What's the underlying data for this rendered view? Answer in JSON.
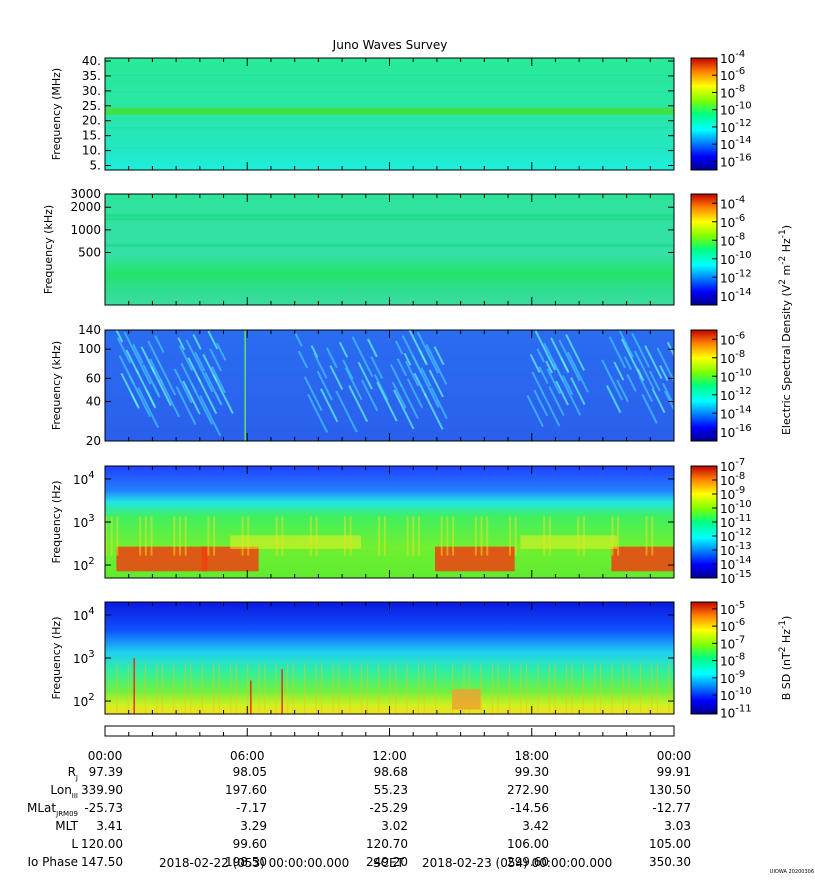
{
  "chart_data": {
    "type": "heatmap",
    "title": "Juno Waves Survey",
    "panels": [
      {
        "id": "p1",
        "ylabel": "Frequency (MHz)",
        "y_scale": "linear",
        "ylim": [
          3.5,
          41
        ],
        "y_ticks": [
          {
            "value": 5,
            "label": "5."
          },
          {
            "value": 10,
            "label": "10."
          },
          {
            "value": 15,
            "label": "15."
          },
          {
            "value": 20,
            "label": "20."
          },
          {
            "value": 25,
            "label": "25."
          },
          {
            "value": 30,
            "label": "30."
          },
          {
            "value": 35,
            "label": "35."
          },
          {
            "value": 40,
            "label": "40."
          }
        ],
        "colorbar": {
          "log_range": [
            -17,
            -4
          ],
          "ticks": [
            {
              "value": -4,
              "base": "10",
              "exp": "-4"
            },
            {
              "value": -6,
              "base": "10",
              "exp": "-6"
            },
            {
              "value": -8,
              "base": "10",
              "exp": "-8"
            },
            {
              "value": -10,
              "base": "10",
              "exp": "-10"
            },
            {
              "value": -12,
              "base": "10",
              "exp": "-12"
            },
            {
              "value": -14,
              "base": "10",
              "exp": "-14"
            },
            {
              "value": -16,
              "base": "10",
              "exp": "-16"
            }
          ]
        }
      },
      {
        "id": "p2",
        "ylabel": "Frequency (kHz)",
        "y_scale": "log",
        "ylim": [
          100,
          3000
        ],
        "y_ticks": [
          {
            "value": 500,
            "label": "500"
          },
          {
            "value": 1000,
            "label": "1000"
          },
          {
            "value": 2000,
            "label": "2000"
          },
          {
            "value": 3000,
            "label": "3000"
          }
        ],
        "colorbar": {
          "log_range": [
            -15,
            -3
          ],
          "ticks": [
            {
              "value": -4,
              "base": "10",
              "exp": "-4"
            },
            {
              "value": -6,
              "base": "10",
              "exp": "-6"
            },
            {
              "value": -8,
              "base": "10",
              "exp": "-8"
            },
            {
              "value": -10,
              "base": "10",
              "exp": "-10"
            },
            {
              "value": -12,
              "base": "10",
              "exp": "-12"
            },
            {
              "value": -14,
              "base": "10",
              "exp": "-14"
            }
          ]
        }
      },
      {
        "id": "p3",
        "ylabel": "Frequency (kHz)",
        "y_scale": "log",
        "ylim": [
          20,
          140
        ],
        "y_ticks": [
          {
            "value": 20,
            "label": "20"
          },
          {
            "value": 40,
            "label": "40"
          },
          {
            "value": 60,
            "label": "60"
          },
          {
            "value": 100,
            "label": "100"
          },
          {
            "value": 140,
            "label": "140"
          }
        ],
        "colorbar": {
          "log_range": [
            -17,
            -5
          ],
          "ticks": [
            {
              "value": -6,
              "base": "10",
              "exp": "-6"
            },
            {
              "value": -8,
              "base": "10",
              "exp": "-8"
            },
            {
              "value": -10,
              "base": "10",
              "exp": "-10"
            },
            {
              "value": -12,
              "base": "10",
              "exp": "-12"
            },
            {
              "value": -14,
              "base": "10",
              "exp": "-14"
            },
            {
              "value": -16,
              "base": "10",
              "exp": "-16"
            }
          ]
        }
      },
      {
        "id": "p4",
        "ylabel": "Frequency (Hz)",
        "y_scale": "log",
        "ylim": [
          50,
          20000
        ],
        "y_ticks": [
          {
            "value": 100,
            "base": "10",
            "exp": "2"
          },
          {
            "value": 1000,
            "base": "10",
            "exp": "3"
          },
          {
            "value": 10000,
            "base": "10",
            "exp": "4"
          }
        ],
        "colorbar": {
          "log_range": [
            -15,
            -7
          ],
          "ticks": [
            {
              "value": -7,
              "base": "10",
              "exp": "-7"
            },
            {
              "value": -8,
              "base": "10",
              "exp": "-8"
            },
            {
              "value": -9,
              "base": "10",
              "exp": "-9"
            },
            {
              "value": -10,
              "base": "10",
              "exp": "-10"
            },
            {
              "value": -11,
              "base": "10",
              "exp": "-11"
            },
            {
              "value": -12,
              "base": "10",
              "exp": "-12"
            },
            {
              "value": -13,
              "base": "10",
              "exp": "-13"
            },
            {
              "value": -14,
              "base": "10",
              "exp": "-14"
            },
            {
              "value": -15,
              "base": "10",
              "exp": "-15"
            }
          ]
        }
      },
      {
        "id": "p5",
        "ylabel": "Frequency (Hz)",
        "y_scale": "log",
        "ylim": [
          50,
          20000
        ],
        "y_ticks": [
          {
            "value": 100,
            "base": "10",
            "exp": "2"
          },
          {
            "value": 1000,
            "base": "10",
            "exp": "3"
          },
          {
            "value": 10000,
            "base": "10",
            "exp": "4"
          }
        ],
        "colorbar": {
          "log_range": [
            -11.1,
            -4.6
          ],
          "ticks": [
            {
              "value": -5,
              "base": "10",
              "exp": "-5"
            },
            {
              "value": -6,
              "base": "10",
              "exp": "-6"
            },
            {
              "value": -7,
              "base": "10",
              "exp": "-7"
            },
            {
              "value": -8,
              "base": "10",
              "exp": "-8"
            },
            {
              "value": -9,
              "base": "10",
              "exp": "-9"
            },
            {
              "value": -10,
              "base": "10",
              "exp": "-10"
            },
            {
              "value": -11,
              "base": "10",
              "exp": "-11"
            }
          ]
        }
      }
    ],
    "colorbar_labels": {
      "electric": {
        "text": "Electric Spectral Density (V",
        "sup1": "2",
        "mid": " m",
        "sup2": "-2",
        "mid2": " Hz",
        "sup3": "-1",
        "end": ")"
      },
      "magnetic": {
        "text": "B SD (nT",
        "sup1": "2",
        "mid": " Hz",
        "sup2": "-1",
        "end": ")"
      }
    },
    "x_ticks": [
      "00:00",
      "06:00",
      "12:00",
      "18:00",
      "00:00"
    ],
    "ephemeris": [
      {
        "label": "R",
        "sub": "J",
        "values": [
          "97.39",
          "98.05",
          "98.68",
          "99.30",
          "99.91"
        ]
      },
      {
        "label": "Lon",
        "sub": "III",
        "values": [
          "339.90",
          "197.60",
          "55.23",
          "272.90",
          "130.50"
        ]
      },
      {
        "label": "MLat",
        "sub": "JRM09",
        "values": [
          "-25.73",
          "-7.17",
          "-25.29",
          "-14.56",
          "-12.77"
        ]
      },
      {
        "label": "MLT",
        "sub": "",
        "values": [
          "3.41",
          "3.29",
          "3.02",
          "3.42",
          "3.03"
        ]
      },
      {
        "label": "L",
        "sub": "",
        "values": [
          "120.00",
          "99.60",
          "120.70",
          "106.00",
          "105.00"
        ]
      },
      {
        "label": "Io Phase",
        "sub": "",
        "values": [
          "147.50",
          "198.50",
          "249.20",
          "299.60",
          "350.30"
        ]
      }
    ],
    "time_range": {
      "start": "2018-02-22 (053) 00:00:00.000",
      "unit": "SCET",
      "end": "2018-02-23 (054) 00:00:00.000"
    },
    "stamp": "UIOWA 20200306"
  }
}
